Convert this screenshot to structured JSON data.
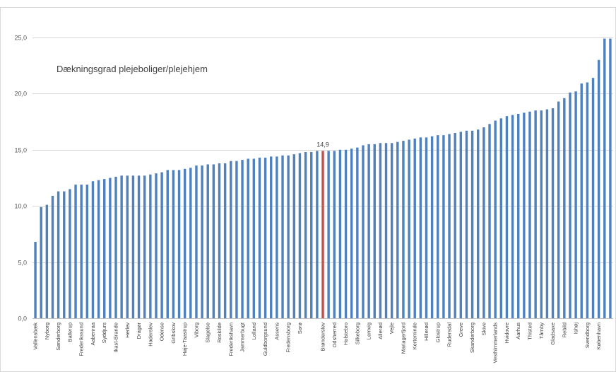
{
  "chart_data": {
    "type": "bar",
    "title": "Dækningsgrad plejeboliger/plejehjem",
    "ylim": [
      0,
      25
    ],
    "yticks": [
      "0,0",
      "5,0",
      "10,0",
      "15,0",
      "20,0",
      "25,0"
    ],
    "grid": true,
    "highlight_index": 50,
    "highlight_label": "14,9",
    "colors": {
      "bar": "#4f81bd",
      "highlight": "#c0504d",
      "grid": "#d9d9d9",
      "axis": "#bfbfbf"
    },
    "labeled_categories": [
      "Vallensbæk",
      "Nyborg",
      "Sønderborg",
      "Ballerup",
      "Frederikssund",
      "Aabenraa",
      "Syddjurs",
      "Ikast-Brande",
      "Herlev",
      "Dragør",
      "Haderslev",
      "Odense",
      "Gribskov",
      "Høje-Taastrup",
      "Viborg",
      "Slagelse",
      "Roskilde",
      "Frederikshavn",
      "Jammerbugt",
      "Lolland",
      "Guldborgsund",
      "Assens",
      "Fredensborg",
      "Sorø",
      "Brønderslev",
      "Odsherred",
      "Holstebro",
      "Silkeborg",
      "Lemvig",
      "Allerød",
      "Vejle",
      "Mariagerfjord",
      "Kerteminde",
      "Hillerød",
      "Glostrup",
      "Rudersdal",
      "Greve",
      "Skanderborg",
      "Skive",
      "Vesthimmerlands",
      "Hvidovre",
      "Aarhus",
      "Thisted",
      "Tårnby",
      "Gladsaxe",
      "Rebild",
      "Ishøj",
      "Svendborg",
      "København"
    ],
    "labeled_indices": [
      0,
      2,
      4,
      6,
      8,
      10,
      12,
      14,
      16,
      18,
      20,
      22,
      24,
      26,
      28,
      30,
      32,
      34,
      36,
      38,
      40,
      42,
      44,
      46,
      50,
      52,
      54,
      56,
      58,
      60,
      62,
      64,
      66,
      68,
      70,
      72,
      74,
      76,
      78,
      80,
      82,
      84,
      86,
      88,
      90,
      92,
      94,
      96,
      98
    ],
    "values": [
      6.8,
      9.9,
      10.1,
      10.9,
      11.3,
      11.3,
      11.5,
      11.9,
      11.9,
      11.9,
      12.2,
      12.3,
      12.4,
      12.5,
      12.6,
      12.7,
      12.7,
      12.7,
      12.7,
      12.7,
      12.8,
      12.9,
      13.0,
      13.2,
      13.2,
      13.2,
      13.3,
      13.4,
      13.6,
      13.6,
      13.7,
      13.7,
      13.8,
      13.8,
      14.0,
      14.0,
      14.1,
      14.2,
      14.2,
      14.3,
      14.3,
      14.4,
      14.4,
      14.5,
      14.5,
      14.6,
      14.7,
      14.8,
      14.8,
      14.9,
      14.9,
      14.9,
      14.9,
      15.0,
      15.0,
      15.1,
      15.2,
      15.4,
      15.5,
      15.5,
      15.6,
      15.6,
      15.6,
      15.7,
      15.8,
      15.9,
      16.0,
      16.1,
      16.1,
      16.2,
      16.3,
      16.3,
      16.4,
      16.5,
      16.6,
      16.7,
      16.7,
      16.8,
      17.0,
      17.3,
      17.6,
      17.8,
      18.0,
      18.1,
      18.2,
      18.3,
      18.4,
      18.5,
      18.5,
      18.6,
      18.7,
      19.3,
      19.6,
      20.1,
      20.2,
      20.9,
      21.0,
      21.4,
      23.0,
      24.9,
      24.9
    ]
  }
}
